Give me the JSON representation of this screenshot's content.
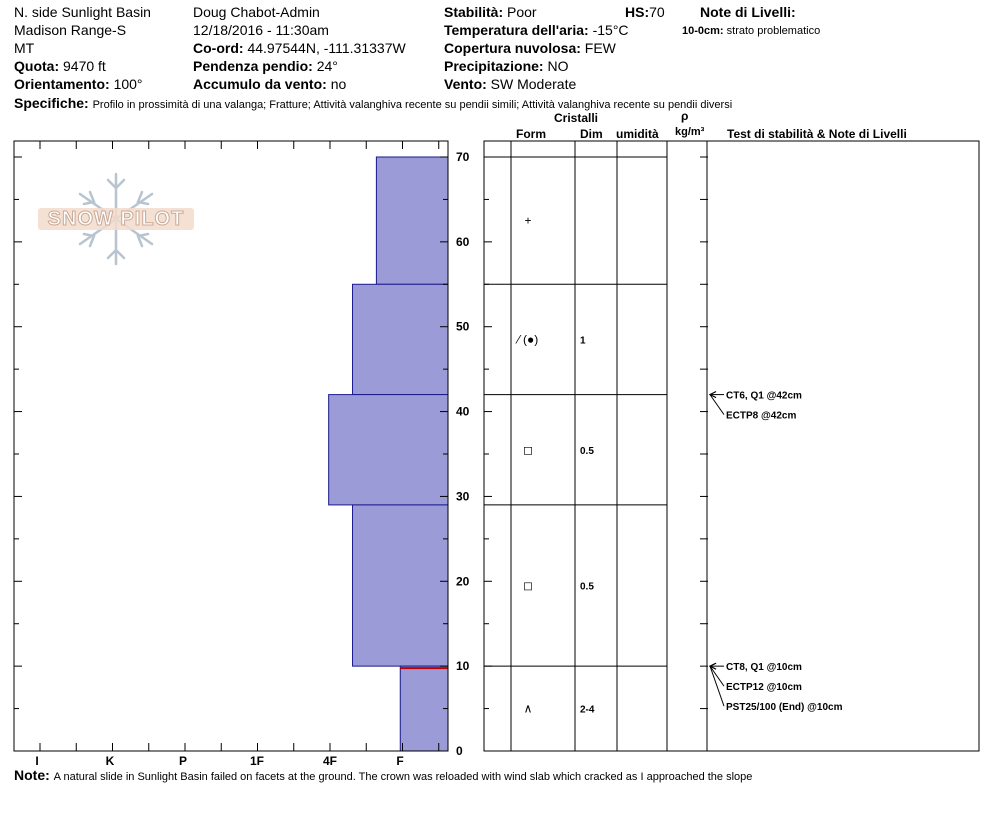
{
  "header": {
    "location": "N. side Sunlight Basin",
    "range": "Madison Range-S",
    "state": "MT",
    "quota_label": "Quota:",
    "quota_value": "9470 ft",
    "orient_label": "Orientamento:",
    "orient_value": "100°",
    "observer": "Doug Chabot-Admin",
    "datetime": "12/18/2016 - 11:30am",
    "coord_label": "Co-ord:",
    "coord_value": "44.97544N, -111.31337W",
    "slope_label": "Pendenza pendio:",
    "slope_value": "24°",
    "wind_load_label": "Accumulo da vento:",
    "wind_load_value": "no",
    "stability_label": "Stabilità:",
    "stability_value": "Poor",
    "hs_label": "HS:",
    "hs_value": "70",
    "temp_label": "Temperatura dell'aria:",
    "temp_value": "-15°C",
    "cloud_label": "Copertura nuvolosa:",
    "cloud_value": "FEW",
    "precip_label": "Precipitazione:",
    "precip_value": "NO",
    "wind_label": "Vento:",
    "wind_value": "SW Moderate",
    "layer_notes_label": "Note di Livelli:",
    "layer_note_depth": "10-0cm:",
    "layer_note_text": "strato problematico",
    "specs_label": "Specifiche:",
    "specs_text": "Profilo in prossimità di una valanga; Fratture; Attività valanghiva recente su pendii simili; Attività valanghiva recente su pendii diversi"
  },
  "columns": {
    "cristalli": "Cristalli",
    "form": "Form",
    "dim": "Dim",
    "umidita": "umidità",
    "rho": "ρ",
    "density_unit": "kg/m³",
    "tests_header": "Test di stabilità & Note di Livelli"
  },
  "logo_text": "SNOW PILOT",
  "note": {
    "label": "Note:",
    "text": "A natural slide in Sunlight Basin failed on facets at the ground. The crown was reloaded with wind slab which cracked as I approached the slope"
  },
  "chart_data": {
    "type": "bar",
    "orientation": "horizontal",
    "description_axis_y": "height (cm)",
    "ylim": [
      0,
      70
    ],
    "y_ticks": [
      "0",
      "10",
      "20",
      "30",
      "40",
      "50",
      "60",
      "70"
    ],
    "hardness_ticks": [
      "I",
      "K",
      "P",
      "1F",
      "4F",
      "F"
    ],
    "bar_color": "#9b9bd8",
    "layers": [
      {
        "top": 70,
        "bottom": 55,
        "hardness_width_frac": 0.165,
        "form": "+",
        "dim": ""
      },
      {
        "top": 55,
        "bottom": 42,
        "hardness_width_frac": 0.22,
        "form": "⁄ (●)",
        "dim": "1"
      },
      {
        "top": 42,
        "bottom": 29,
        "hardness_width_frac": 0.275,
        "form": "◻",
        "dim": "0.5"
      },
      {
        "top": 29,
        "bottom": 10,
        "hardness_width_frac": 0.22,
        "form": "◻",
        "dim": "0.5"
      },
      {
        "top": 10,
        "bottom": 0,
        "hardness_width_frac": 0.11,
        "form": "∧",
        "dim": "2-4"
      }
    ],
    "weak_layer_height": 10,
    "tests": [
      {
        "height": 42,
        "text": "CT6, Q1 @42cm"
      },
      {
        "height": 42,
        "text": "ECTP8 @42cm"
      },
      {
        "height": 10,
        "text": "CT8, Q1 @10cm"
      },
      {
        "height": 10,
        "text": "ECTP12 @10cm"
      },
      {
        "height": 10,
        "text": "PST25/100 (End) @10cm"
      }
    ]
  }
}
